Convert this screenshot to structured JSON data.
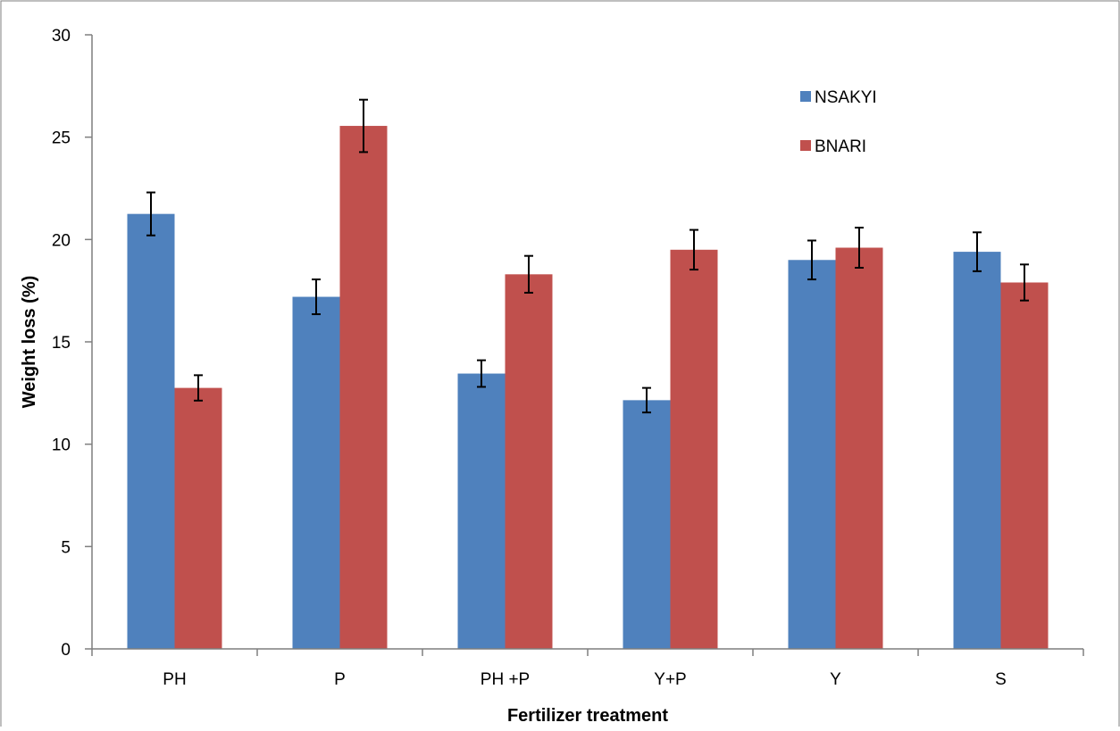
{
  "chart_data": {
    "type": "bar",
    "title": "",
    "xlabel": "Fertilizer treatment",
    "ylabel": "Weight loss (%)",
    "ylim": [
      0,
      30
    ],
    "yticks": [
      0,
      5,
      10,
      15,
      20,
      25,
      30
    ],
    "grid": false,
    "legend_position": "top-right",
    "categories": [
      "PH",
      "P",
      "PH +P",
      "Y+P",
      "Y",
      "S"
    ],
    "series": [
      {
        "name": "NSAKYI",
        "color": "#4F81BD",
        "values": [
          21.25,
          17.2,
          13.45,
          12.15,
          19.0,
          19.4
        ],
        "errors": [
          1.05,
          0.85,
          0.65,
          0.6,
          0.95,
          0.95
        ]
      },
      {
        "name": "BNARI",
        "color": "#C0504D",
        "values": [
          12.75,
          25.55,
          18.3,
          19.5,
          19.6,
          17.9
        ],
        "errors": [
          0.62,
          1.28,
          0.9,
          0.97,
          0.98,
          0.88
        ]
      }
    ]
  }
}
